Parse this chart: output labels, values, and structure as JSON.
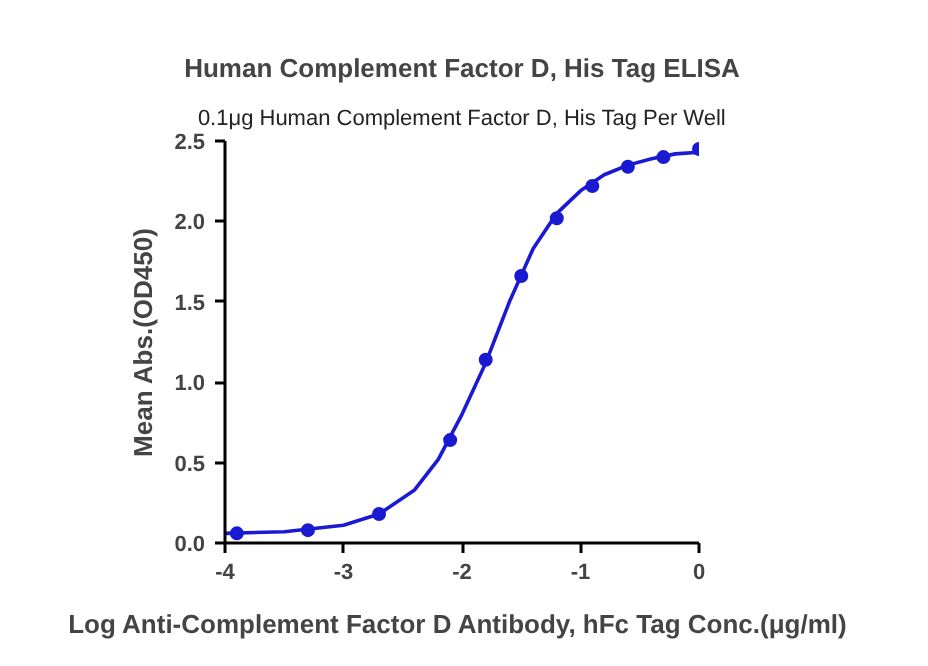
{
  "chart_data": {
    "type": "line",
    "title": "Human Complement Factor D, His Tag ELISA",
    "subtitle": "0.1μg Human Complement Factor D, His Tag Per Well",
    "xlabel": "Log Anti-Complement Factor D  Antibody, hFc Tag Conc.(μg/ml)",
    "ylabel": "Mean Abs.(OD450)",
    "x": [
      -3.9,
      -3.3,
      -2.7,
      -2.1,
      -1.8,
      -1.5,
      -1.2,
      -0.9,
      -0.6,
      -0.3,
      0
    ],
    "series": [
      {
        "type": "scatter",
        "color": "#1a1ad2",
        "marker": "circle",
        "values": [
          0.06,
          0.08,
          0.18,
          0.64,
          1.14,
          1.66,
          2.02,
          2.22,
          2.34,
          2.4,
          2.45
        ]
      },
      {
        "color": "#1a1ad2",
        "line_style": "solid",
        "x": [
          -4,
          -3.5,
          -3,
          -2.7,
          -2.4,
          -2.2,
          -2,
          -1.8,
          -1.6,
          -1.4,
          -1.2,
          -1,
          -0.8,
          -0.6,
          -0.4,
          -0.2,
          0
        ],
        "values": [
          0.06,
          0.07,
          0.11,
          0.18,
          0.33,
          0.52,
          0.8,
          1.12,
          1.5,
          1.83,
          2.05,
          2.19,
          2.29,
          2.35,
          2.39,
          2.42,
          2.43
        ]
      }
    ],
    "xlim": [
      -4,
      0
    ],
    "xticks": [
      -4,
      -3,
      -2,
      -1,
      0
    ],
    "ylim": [
      0,
      2.5
    ],
    "yticks": [
      {
        "value": 0,
        "label": "0.0"
      },
      {
        "value": 0.5,
        "label": "0.5"
      },
      {
        "value": 1,
        "label": "1.0"
      },
      {
        "value": 1.5,
        "label": "1.5"
      },
      {
        "value": 2,
        "label": "2.0"
      },
      {
        "value": 2.5,
        "label": "2.5"
      }
    ],
    "grid": false
  }
}
